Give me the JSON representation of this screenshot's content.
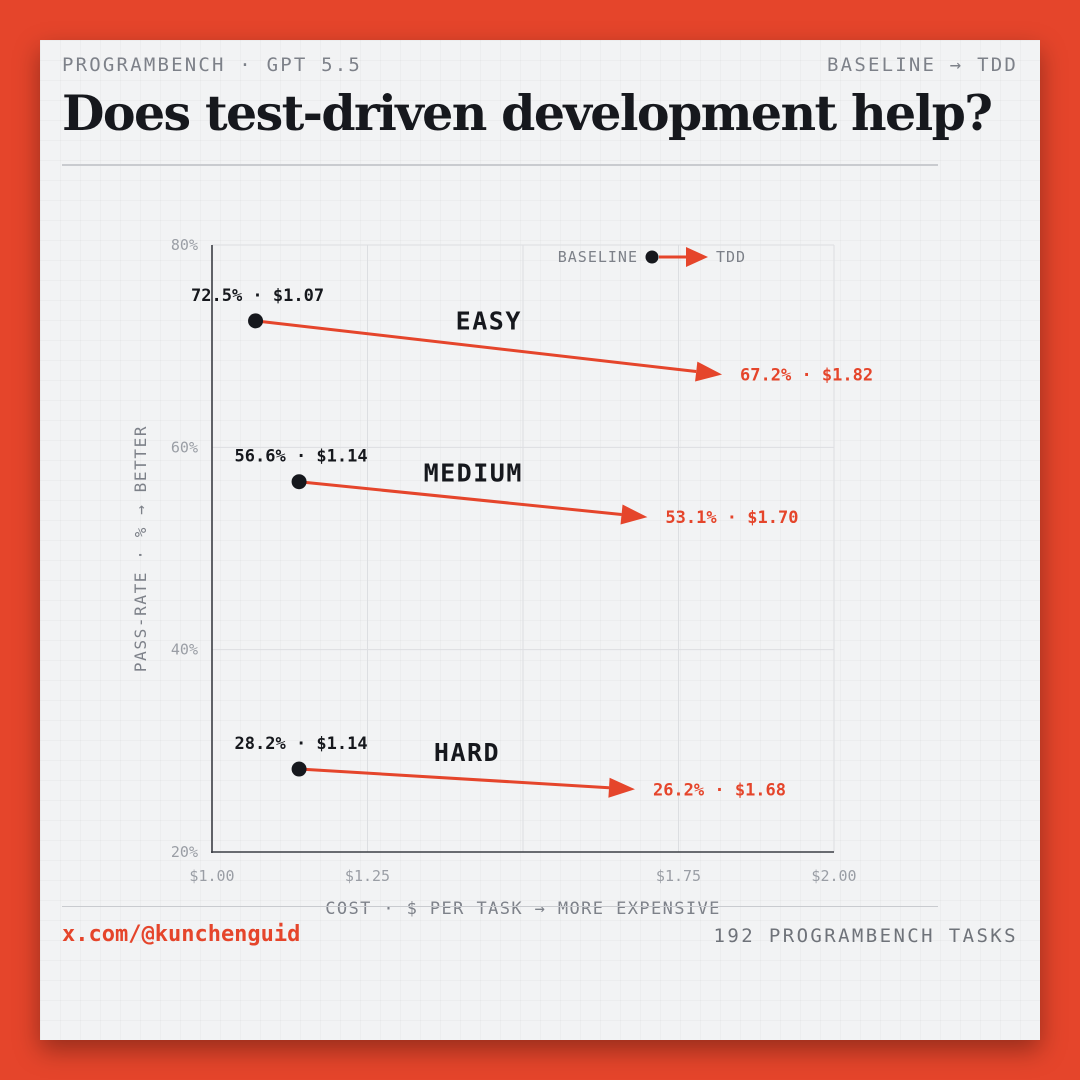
{
  "header": {
    "kicker_left": "PROGRAMBENCH · GPT 5.5",
    "kicker_right": "BASELINE → TDD",
    "title": "Does test-driven development help?"
  },
  "footer": {
    "handle": "x.com/@kunchenguid",
    "note": "192 PROGRAMBENCH TASKS"
  },
  "colors": {
    "accent": "#e5452b",
    "ink": "#16181d",
    "muted": "#8a8e96",
    "card": "#f2f3f4"
  },
  "chart_data": {
    "type": "scatter",
    "xlabel": "COST · $ PER TASK → MORE EXPENSIVE",
    "ylabel": "PASS-RATE · % → BETTER",
    "xlim": [
      1.0,
      2.0
    ],
    "ylim": [
      20,
      80
    ],
    "x_ticks": [
      {
        "value": 1.0,
        "label": "$1.00"
      },
      {
        "value": 1.25,
        "label": "$1.25"
      },
      {
        "value": 1.75,
        "label": "$1.75"
      },
      {
        "value": 2.0,
        "label": "$2.00"
      }
    ],
    "x_gridlines": [
      1.25,
      1.5,
      1.75
    ],
    "y_ticks": [
      {
        "value": 20,
        "label": "20%"
      },
      {
        "value": 40,
        "label": "40%"
      },
      {
        "value": 60,
        "label": "60%"
      },
      {
        "value": 80,
        "label": "80%"
      }
    ],
    "grid": true,
    "legend": {
      "from": "BASELINE",
      "to": "TDD",
      "placement": "top-right"
    },
    "groups": [
      {
        "name": "EASY",
        "baseline": {
          "cost": 1.07,
          "pass_rate": 72.5,
          "label": "72.5% · $1.07"
        },
        "tdd": {
          "cost": 1.82,
          "pass_rate": 67.2,
          "label": "67.2% · $1.82"
        }
      },
      {
        "name": "MEDIUM",
        "baseline": {
          "cost": 1.14,
          "pass_rate": 56.6,
          "label": "56.6% · $1.14"
        },
        "tdd": {
          "cost": 1.7,
          "pass_rate": 53.1,
          "label": "53.1% · $1.70"
        }
      },
      {
        "name": "HARD",
        "baseline": {
          "cost": 1.14,
          "pass_rate": 28.2,
          "label": "28.2% · $1.14"
        },
        "tdd": {
          "cost": 1.68,
          "pass_rate": 26.2,
          "label": "26.2% · $1.68"
        }
      }
    ]
  }
}
